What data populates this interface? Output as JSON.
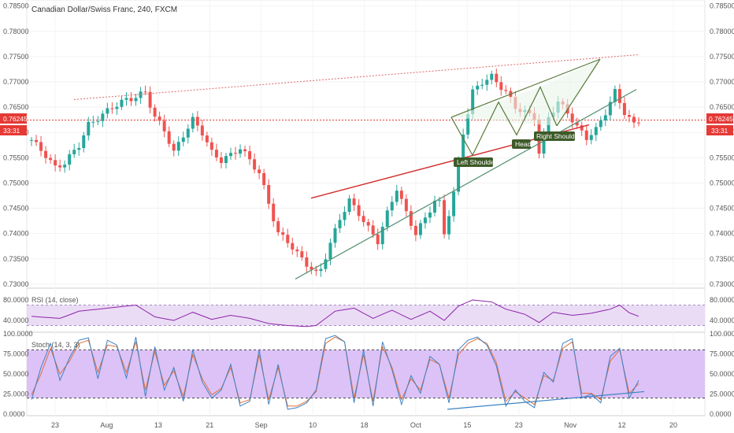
{
  "header": {
    "title": "Canadian Dollar/Swiss Franc, 240, FXCM"
  },
  "price_badges": {
    "last_price": "0.76245",
    "countdown": "33:31"
  },
  "pattern_labels": {
    "left_shoulder": "Left Shoulder",
    "head": "Head",
    "right_shoulder": "Right Shoulder"
  },
  "rsi_panel": {
    "title": "RSI (14, close)",
    "ticks": [
      "80.0000",
      "40.0000"
    ]
  },
  "stoch_panel": {
    "title": "Stoch (14, 3, 3)",
    "ticks": [
      "100.0000",
      "75.0000",
      "50.0000",
      "25.0000",
      "0.0000"
    ]
  },
  "colors": {
    "up": "#26a69a",
    "down": "#ef5350",
    "rsi_line": "#8e24aa",
    "rsi_band": "#eadcf5",
    "stoch_band": "#dcc2f7",
    "stoch_k": "#3f82c4",
    "stoch_d": "#e0703a",
    "resistance": "#e06666",
    "trend_green": "#4f8f6f",
    "neckline": "#d32f2f",
    "wedge": "#5a7a3a",
    "label_bg": "#3d5a28",
    "badge": "#e53935"
  },
  "chart_data": {
    "type": "candlestick",
    "instrument": "Canadian Dollar/Swiss Franc",
    "timeframe": "240",
    "source": "FXCM",
    "last_price": 0.76245,
    "price_ticks": [
      "0.78500",
      "0.78000",
      "0.77500",
      "0.77000",
      "0.76500",
      "0.76000",
      "0.75500",
      "0.75000",
      "0.74500",
      "0.74000",
      "0.73500",
      "0.73000"
    ],
    "price_range": [
      0.7292,
      0.7862
    ],
    "x_tick_labels": [
      "23",
      "Aug",
      "13",
      "21",
      "Sep",
      "10",
      "18",
      "Oct",
      "15",
      "23",
      "Nov",
      "12",
      "20"
    ],
    "price_path": [
      [
        0,
        0.7585
      ],
      [
        3,
        0.7555
      ],
      [
        5,
        0.753
      ],
      [
        7,
        0.754
      ],
      [
        10,
        0.7575
      ],
      [
        12,
        0.7615
      ],
      [
        15,
        0.7635
      ],
      [
        17,
        0.765
      ],
      [
        20,
        0.7665
      ],
      [
        22,
        0.767
      ],
      [
        24,
        0.768
      ],
      [
        26,
        0.763
      ],
      [
        28,
        0.7605
      ],
      [
        30,
        0.756
      ],
      [
        32,
        0.7595
      ],
      [
        34,
        0.7625
      ],
      [
        36,
        0.76
      ],
      [
        38,
        0.756
      ],
      [
        40,
        0.7545
      ],
      [
        42,
        0.7555
      ],
      [
        44,
        0.757
      ],
      [
        46,
        0.7545
      ],
      [
        48,
        0.752
      ],
      [
        50,
        0.746
      ],
      [
        52,
        0.74
      ],
      [
        54,
        0.7385
      ],
      [
        56,
        0.736
      ],
      [
        58,
        0.734
      ],
      [
        60,
        0.732
      ],
      [
        61,
        0.733
      ],
      [
        63,
        0.738
      ],
      [
        65,
        0.743
      ],
      [
        67,
        0.7465
      ],
      [
        69,
        0.744
      ],
      [
        71,
        0.741
      ],
      [
        73,
        0.7385
      ],
      [
        75,
        0.744
      ],
      [
        77,
        0.749
      ],
      [
        79,
        0.744
      ],
      [
        81,
        0.74
      ],
      [
        83,
        0.743
      ],
      [
        85,
        0.7465
      ],
      [
        86,
        0.746
      ],
      [
        87,
        0.74
      ],
      [
        89,
        0.748
      ],
      [
        91,
        0.76
      ],
      [
        93,
        0.768
      ],
      [
        95,
        0.77
      ],
      [
        97,
        0.771
      ],
      [
        98,
        0.77
      ],
      [
        100,
        0.768
      ],
      [
        102,
        0.765
      ],
      [
        104,
        0.764
      ],
      [
        106,
        0.763
      ],
      [
        107,
        0.756
      ],
      [
        109,
        0.763
      ],
      [
        111,
        0.766
      ],
      [
        113,
        0.764
      ],
      [
        115,
        0.761
      ],
      [
        117,
        0.759
      ],
      [
        119,
        0.7605
      ],
      [
        121,
        0.764
      ],
      [
        123,
        0.768
      ],
      [
        125,
        0.764
      ],
      [
        127,
        0.7615
      ],
      [
        128,
        0.7624
      ]
    ],
    "rsi": {
      "name": "RSI (14, close)",
      "range": [
        20,
        100
      ],
      "band": [
        30,
        70
      ],
      "path": [
        [
          0,
          48
        ],
        [
          6,
          44
        ],
        [
          10,
          58
        ],
        [
          16,
          64
        ],
        [
          22,
          70
        ],
        [
          26,
          47
        ],
        [
          30,
          40
        ],
        [
          34,
          56
        ],
        [
          38,
          42
        ],
        [
          42,
          50
        ],
        [
          46,
          44
        ],
        [
          50,
          34
        ],
        [
          54,
          30
        ],
        [
          58,
          28
        ],
        [
          60,
          30
        ],
        [
          64,
          58
        ],
        [
          68,
          64
        ],
        [
          72,
          44
        ],
        [
          76,
          60
        ],
        [
          80,
          42
        ],
        [
          84,
          58
        ],
        [
          87,
          40
        ],
        [
          90,
          68
        ],
        [
          93,
          80
        ],
        [
          97,
          76
        ],
        [
          100,
          62
        ],
        [
          104,
          52
        ],
        [
          107,
          36
        ],
        [
          110,
          56
        ],
        [
          114,
          50
        ],
        [
          118,
          54
        ],
        [
          122,
          62
        ],
        [
          124,
          70
        ],
        [
          126,
          55
        ],
        [
          128,
          48
        ]
      ]
    },
    "stochastic": {
      "name": "Stoch (14, 3, 3)",
      "range": [
        0,
        100
      ],
      "band": [
        20,
        80
      ],
      "k_path": [
        [
          0,
          18
        ],
        [
          2,
          58
        ],
        [
          4,
          88
        ],
        [
          6,
          42
        ],
        [
          8,
          70
        ],
        [
          10,
          92
        ],
        [
          12,
          95
        ],
        [
          14,
          44
        ],
        [
          16,
          92
        ],
        [
          18,
          86
        ],
        [
          20,
          45
        ],
        [
          22,
          96
        ],
        [
          24,
          22
        ],
        [
          26,
          84
        ],
        [
          28,
          30
        ],
        [
          30,
          58
        ],
        [
          32,
          16
        ],
        [
          34,
          80
        ],
        [
          36,
          40
        ],
        [
          38,
          20
        ],
        [
          40,
          30
        ],
        [
          42,
          62
        ],
        [
          44,
          10
        ],
        [
          46,
          16
        ],
        [
          48,
          80
        ],
        [
          50,
          12
        ],
        [
          52,
          62
        ],
        [
          54,
          6
        ],
        [
          56,
          8
        ],
        [
          58,
          14
        ],
        [
          60,
          30
        ],
        [
          62,
          94
        ],
        [
          64,
          98
        ],
        [
          66,
          90
        ],
        [
          68,
          14
        ],
        [
          70,
          80
        ],
        [
          72,
          10
        ],
        [
          74,
          90
        ],
        [
          76,
          55
        ],
        [
          78,
          12
        ],
        [
          80,
          48
        ],
        [
          82,
          26
        ],
        [
          84,
          72
        ],
        [
          86,
          62
        ],
        [
          88,
          14
        ],
        [
          90,
          80
        ],
        [
          92,
          92
        ],
        [
          94,
          96
        ],
        [
          96,
          86
        ],
        [
          98,
          60
        ],
        [
          100,
          10
        ],
        [
          102,
          30
        ],
        [
          104,
          16
        ],
        [
          106,
          8
        ],
        [
          108,
          52
        ],
        [
          110,
          40
        ],
        [
          112,
          88
        ],
        [
          114,
          94
        ],
        [
          116,
          20
        ],
        [
          118,
          25
        ],
        [
          120,
          14
        ],
        [
          122,
          72
        ],
        [
          124,
          82
        ],
        [
          126,
          20
        ],
        [
          128,
          42
        ]
      ],
      "d_path": [
        [
          0,
          24
        ],
        [
          2,
          50
        ],
        [
          4,
          82
        ],
        [
          6,
          50
        ],
        [
          8,
          66
        ],
        [
          10,
          88
        ],
        [
          12,
          92
        ],
        [
          14,
          52
        ],
        [
          16,
          86
        ],
        [
          18,
          84
        ],
        [
          20,
          52
        ],
        [
          22,
          90
        ],
        [
          24,
          30
        ],
        [
          26,
          78
        ],
        [
          28,
          36
        ],
        [
          30,
          54
        ],
        [
          32,
          22
        ],
        [
          34,
          74
        ],
        [
          36,
          44
        ],
        [
          38,
          24
        ],
        [
          40,
          32
        ],
        [
          42,
          58
        ],
        [
          44,
          14
        ],
        [
          46,
          18
        ],
        [
          48,
          74
        ],
        [
          50,
          18
        ],
        [
          52,
          58
        ],
        [
          54,
          10
        ],
        [
          56,
          10
        ],
        [
          58,
          16
        ],
        [
          60,
          28
        ],
        [
          62,
          88
        ],
        [
          64,
          96
        ],
        [
          66,
          90
        ],
        [
          68,
          20
        ],
        [
          70,
          74
        ],
        [
          72,
          16
        ],
        [
          74,
          84
        ],
        [
          76,
          58
        ],
        [
          78,
          18
        ],
        [
          80,
          44
        ],
        [
          82,
          30
        ],
        [
          84,
          68
        ],
        [
          86,
          62
        ],
        [
          88,
          20
        ],
        [
          90,
          74
        ],
        [
          92,
          88
        ],
        [
          94,
          94
        ],
        [
          96,
          88
        ],
        [
          98,
          64
        ],
        [
          100,
          16
        ],
        [
          102,
          28
        ],
        [
          104,
          20
        ],
        [
          106,
          12
        ],
        [
          108,
          48
        ],
        [
          110,
          42
        ],
        [
          112,
          82
        ],
        [
          114,
          90
        ],
        [
          116,
          26
        ],
        [
          118,
          26
        ],
        [
          120,
          18
        ],
        [
          122,
          66
        ],
        [
          124,
          80
        ],
        [
          126,
          26
        ],
        [
          128,
          38
        ]
      ]
    }
  }
}
